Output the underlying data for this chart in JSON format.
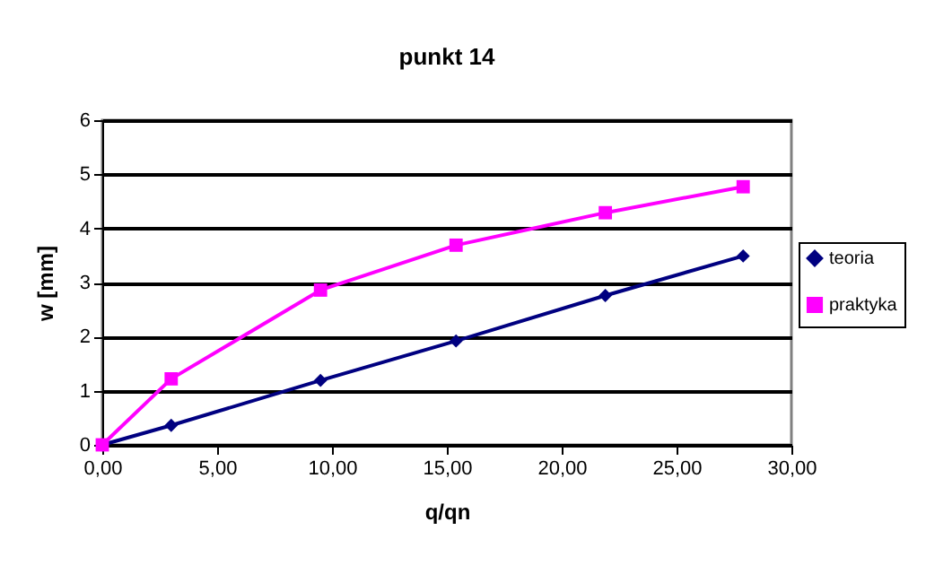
{
  "chart_data": {
    "type": "line",
    "title": "punkt 14",
    "xlabel": "q/qn",
    "ylabel": "w [mm]",
    "xlim": [
      0,
      30
    ],
    "xticks": [
      {
        "value": 0,
        "label": "0,00"
      },
      {
        "value": 5,
        "label": "5,00"
      },
      {
        "value": 10,
        "label": "10,00"
      },
      {
        "value": 15,
        "label": "15,00"
      },
      {
        "value": 20,
        "label": "20,00"
      },
      {
        "value": 25,
        "label": "25,00"
      },
      {
        "value": 30,
        "label": "30,00"
      }
    ],
    "ylim": [
      0,
      6
    ],
    "yticks": [
      0,
      1,
      2,
      3,
      4,
      5,
      6
    ],
    "grid": "y",
    "legend": "right",
    "x": [
      0,
      3.0,
      9.5,
      15.4,
      21.9,
      27.9
    ],
    "series": [
      {
        "name": "teoria",
        "color": "#000080",
        "marker": "diamond",
        "values": [
          0,
          0.36,
          1.19,
          1.92,
          2.76,
          3.49
        ]
      },
      {
        "name": "praktyka",
        "color": "#ff00ff",
        "marker": "square",
        "values": [
          0,
          1.22,
          2.86,
          3.69,
          4.29,
          4.77
        ]
      }
    ]
  }
}
